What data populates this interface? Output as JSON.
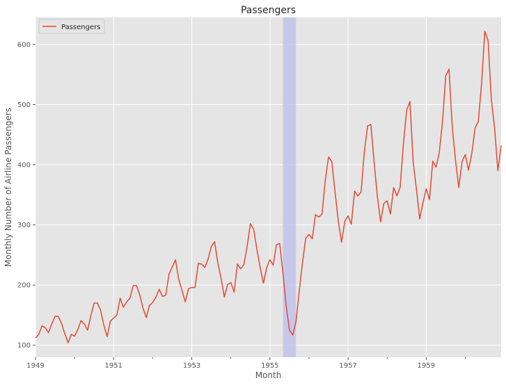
{
  "chart_data": {
    "type": "line",
    "title": "Passengers",
    "xlabel": "Month",
    "ylabel": "Monthly Number of Airline Passengers",
    "x_start": "1949-01",
    "x_end": "1960-12",
    "xlim": [
      1949.0,
      1960.917
    ],
    "ylim": [
      80,
      645
    ],
    "x_ticks": [
      "1949",
      "1951",
      "1953",
      "1955",
      "1957",
      "1959"
    ],
    "y_ticks": [
      100,
      200,
      300,
      400,
      500,
      600
    ],
    "grid": true,
    "legend": {
      "position": "top-left",
      "entries": [
        "Passengers"
      ]
    },
    "highlight_span": {
      "from": "1955-05",
      "to": "1955-09"
    },
    "colors": {
      "line": "#e24a33",
      "background": "#e5e5e5",
      "grid": "#ffffff",
      "highlight": "#bfbfea"
    },
    "series": [
      {
        "name": "Passengers",
        "values": [
          112,
          118,
          132,
          129,
          121,
          135,
          148,
          148,
          136,
          119,
          104,
          118,
          115,
          126,
          141,
          135,
          125,
          149,
          170,
          170,
          158,
          133,
          114,
          140,
          145,
          150,
          178,
          163,
          172,
          178,
          199,
          199,
          184,
          162,
          146,
          166,
          171,
          180,
          193,
          181,
          183,
          218,
          230,
          242,
          209,
          191,
          172,
          194,
          196,
          196,
          236,
          235,
          229,
          243,
          264,
          272,
          237,
          211,
          180,
          201,
          204,
          188,
          235,
          227,
          234,
          264,
          302,
          293,
          259,
          229,
          203,
          229,
          242,
          233,
          267,
          269,
          220,
          165,
          125,
          117,
          139,
          190,
          237,
          278,
          284,
          277,
          317,
          313,
          318,
          374,
          413,
          405,
          355,
          306,
          271,
          306,
          315,
          301,
          356,
          348,
          355,
          422,
          465,
          467,
          404,
          347,
          305,
          336,
          340,
          318,
          362,
          348,
          363,
          435,
          491,
          505,
          404,
          359,
          310,
          337,
          360,
          342,
          406,
          396,
          420,
          472,
          548,
          559,
          463,
          407,
          362,
          405,
          417,
          391,
          419,
          461,
          472,
          535,
          622,
          606,
          508,
          461,
          390,
          432
        ]
      }
    ]
  }
}
